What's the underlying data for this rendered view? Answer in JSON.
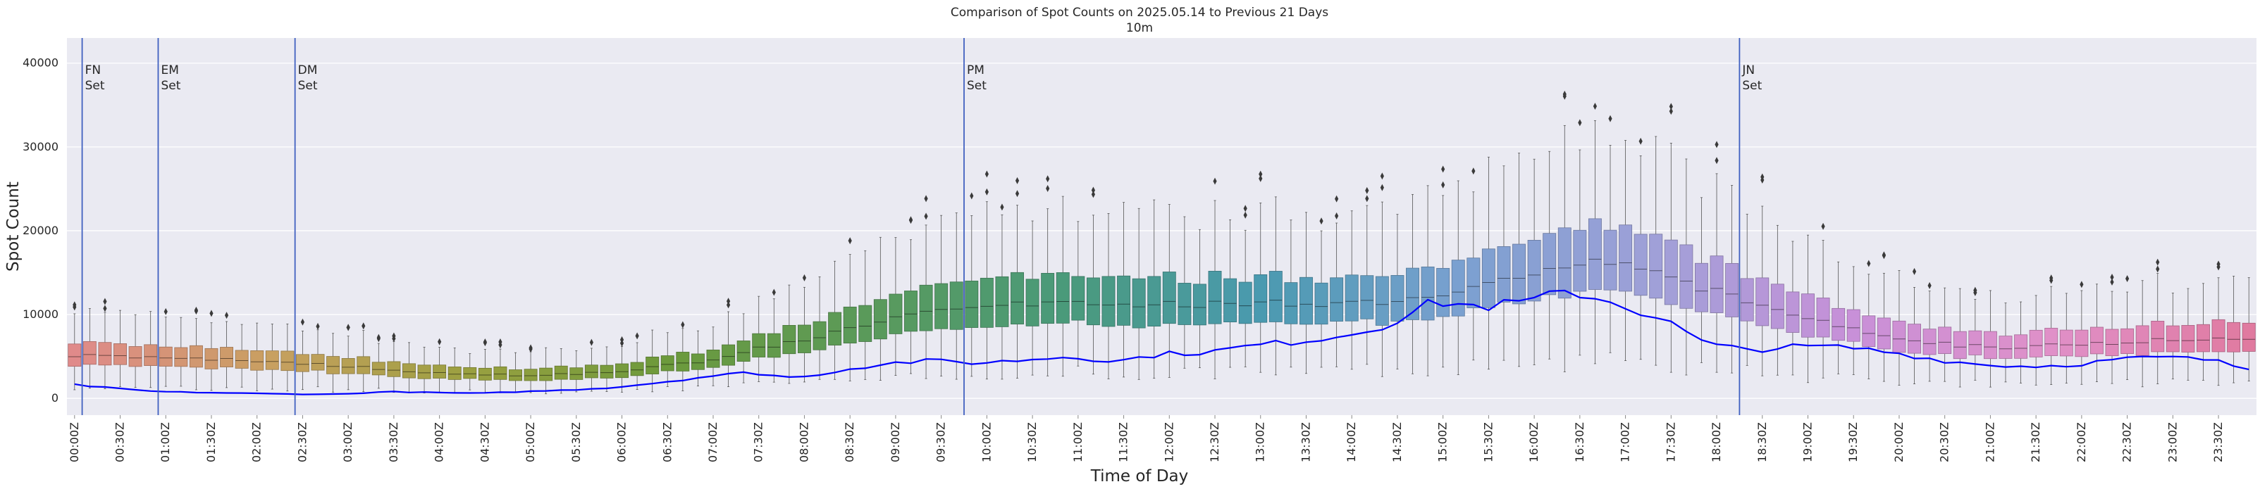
{
  "chart_data": {
    "type": "box",
    "title": "Comparison of Spot Counts on 2025.05.14 to Previous 21 Days",
    "subtitle": "10m",
    "xlabel": "Time of Day",
    "ylabel": "Spot Count",
    "ylim": [
      -2000,
      43000
    ],
    "yticks": [
      0,
      10000,
      20000,
      30000,
      40000
    ],
    "bin_minutes": 10,
    "grid": true,
    "x_tick_labels": [
      "00:00Z",
      "00:30Z",
      "01:00Z",
      "01:30Z",
      "02:00Z",
      "02:30Z",
      "03:00Z",
      "03:30Z",
      "04:00Z",
      "04:30Z",
      "05:00Z",
      "05:30Z",
      "06:00Z",
      "06:30Z",
      "07:00Z",
      "07:30Z",
      "08:00Z",
      "08:30Z",
      "09:00Z",
      "09:30Z",
      "10:00Z",
      "10:30Z",
      "11:00Z",
      "11:30Z",
      "12:00Z",
      "12:30Z",
      "13:00Z",
      "13:30Z",
      "14:00Z",
      "14:30Z",
      "15:00Z",
      "15:30Z",
      "16:00Z",
      "16:30Z",
      "17:00Z",
      "17:30Z",
      "18:00Z",
      "18:30Z",
      "19:00Z",
      "19:30Z",
      "20:00Z",
      "20:30Z",
      "21:00Z",
      "21:30Z",
      "22:00Z",
      "22:30Z",
      "23:00Z",
      "23:30Z"
    ],
    "box_median_anchors": [
      [
        0,
        5200
      ],
      [
        1,
        4900
      ],
      [
        2,
        4500
      ],
      [
        3,
        3900
      ],
      [
        4,
        3100
      ],
      [
        5,
        2700
      ],
      [
        6,
        3100
      ],
      [
        7,
        4500
      ],
      [
        8,
        6900
      ],
      [
        9,
        9200
      ],
      [
        10,
        11200
      ],
      [
        11,
        11500
      ],
      [
        12,
        11200
      ],
      [
        13,
        11300
      ],
      [
        14,
        11300
      ],
      [
        15,
        11800
      ],
      [
        16,
        14700
      ],
      [
        17,
        16600
      ],
      [
        18,
        13000
      ],
      [
        19,
        9600
      ],
      [
        20,
        7200
      ],
      [
        21,
        6100
      ],
      [
        22,
        6300
      ],
      [
        23,
        7100
      ]
    ],
    "today_anchors": [
      [
        0,
        1700
      ],
      [
        0.5,
        1200
      ],
      [
        1,
        800
      ],
      [
        1.5,
        700
      ],
      [
        2,
        600
      ],
      [
        2.5,
        500
      ],
      [
        3,
        500
      ],
      [
        3.5,
        800
      ],
      [
        4,
        700
      ],
      [
        4.5,
        600
      ],
      [
        5,
        800
      ],
      [
        5.5,
        1000
      ],
      [
        6,
        1300
      ],
      [
        6.5,
        1900
      ],
      [
        7,
        2600
      ],
      [
        7.5,
        3100
      ],
      [
        8,
        2400
      ],
      [
        8.5,
        3400
      ],
      [
        9,
        4200
      ],
      [
        9.5,
        4500
      ],
      [
        10,
        4200
      ],
      [
        10.5,
        4600
      ],
      [
        11,
        5000
      ],
      [
        11.5,
        4400
      ],
      [
        12,
        5300
      ],
      [
        12.5,
        5500
      ],
      [
        13,
        6300
      ],
      [
        13.5,
        6800
      ],
      [
        14,
        7500
      ],
      [
        14.5,
        8900
      ],
      [
        15,
        11600
      ],
      [
        15.5,
        10900
      ],
      [
        16,
        11500
      ],
      [
        16.5,
        12800
      ],
      [
        17,
        11300
      ],
      [
        17.5,
        9400
      ],
      [
        18,
        6300
      ],
      [
        18.5,
        5800
      ],
      [
        19,
        6200
      ],
      [
        19.5,
        6100
      ],
      [
        20,
        5500
      ],
      [
        20.5,
        4600
      ],
      [
        21,
        4000
      ],
      [
        21.5,
        3800
      ],
      [
        22,
        4000
      ],
      [
        22.5,
        4700
      ],
      [
        23,
        4900
      ],
      [
        23.5,
        4600
      ],
      [
        23.9,
        3500
      ]
    ],
    "series": [
      {
        "name": "Previous 21 Days",
        "type": "box"
      },
      {
        "name": "2025.05.14",
        "type": "line",
        "color": "#0000ff"
      }
    ],
    "vlines": [
      {
        "x": "00:10Z",
        "label": "FN\nSet"
      },
      {
        "x": "01:00Z",
        "label": "EM\nSet"
      },
      {
        "x": "02:30Z",
        "label": "DM\nSet"
      },
      {
        "x": "09:50Z",
        "label": "PM\nSet"
      },
      {
        "x": "18:20Z",
        "label": "JN\nSet"
      }
    ],
    "vline_color": "#4060c0",
    "palette": [
      "#e08a8a",
      "#c8a060",
      "#9aa040",
      "#6c9a3c",
      "#5a9a5a",
      "#4a9a7a",
      "#4a9ab0",
      "#7aa0d0",
      "#a0a0d8",
      "#c890d8",
      "#e090c8",
      "#e07aa0"
    ]
  }
}
